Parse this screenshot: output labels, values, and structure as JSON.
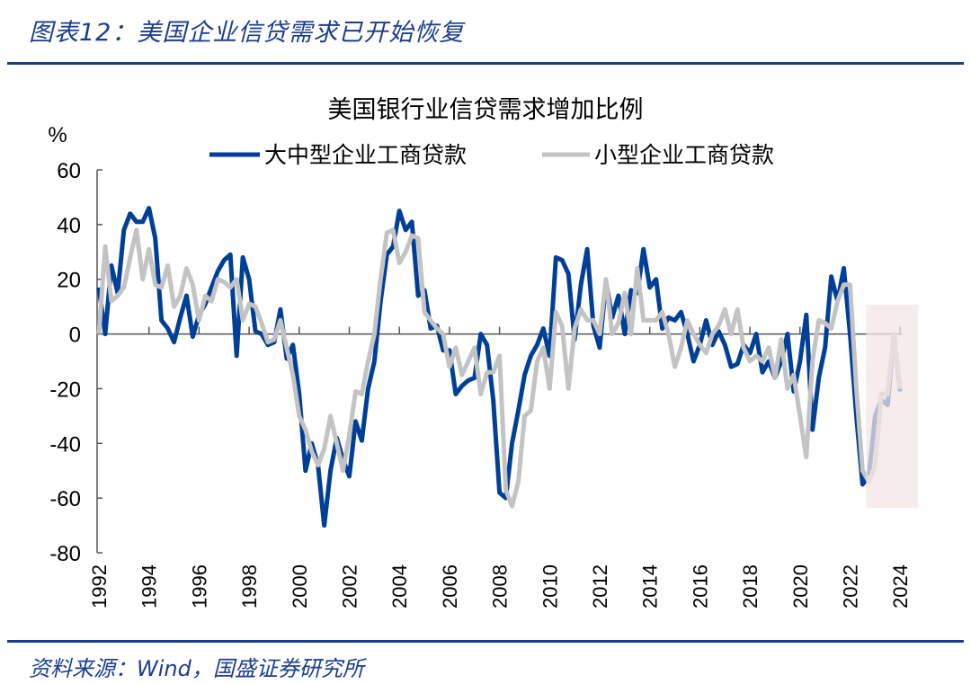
{
  "header": {
    "title": "图表12：美国企业信贷需求已开始恢复"
  },
  "footer": {
    "source": "资料来源：Wind，国盛证券研究所"
  },
  "colors": {
    "accent": "#1a3d8f",
    "series_large": "#003f98",
    "series_small": "#c3c3c3",
    "highlight": "#f3e6e6"
  },
  "chart_data": {
    "type": "line",
    "title": "美国银行业信贷需求增加比例",
    "ylabel": "%",
    "xlabel": "",
    "ylim": [
      -80,
      60
    ],
    "yticks": [
      "60",
      "40",
      "20",
      "0",
      "-20",
      "-40",
      "-60",
      "-80"
    ],
    "xticks": [
      "1992",
      "1994",
      "1996",
      "1998",
      "2000",
      "2002",
      "2004",
      "2006",
      "2008",
      "2010",
      "2012",
      "2014",
      "2016",
      "2018",
      "2020",
      "2022",
      "2024"
    ],
    "grid": false,
    "legend": "top",
    "highlight_range": [
      "2022Q3",
      "2024Q1"
    ],
    "x": [
      "1992Q1",
      "1992Q2",
      "1992Q3",
      "1992Q4",
      "1993Q1",
      "1993Q2",
      "1993Q3",
      "1993Q4",
      "1994Q1",
      "1994Q2",
      "1994Q3",
      "1994Q4",
      "1995Q1",
      "1995Q2",
      "1995Q3",
      "1995Q4",
      "1996Q1",
      "1996Q2",
      "1996Q3",
      "1996Q4",
      "1997Q1",
      "1997Q2",
      "1997Q3",
      "1997Q4",
      "1998Q1",
      "1998Q2",
      "1998Q3",
      "1998Q4",
      "1999Q1",
      "1999Q2",
      "1999Q3",
      "1999Q4",
      "2000Q1",
      "2000Q2",
      "2000Q3",
      "2000Q4",
      "2001Q1",
      "2001Q2",
      "2001Q3",
      "2001Q4",
      "2002Q1",
      "2002Q2",
      "2002Q3",
      "2002Q4",
      "2003Q1",
      "2003Q2",
      "2003Q3",
      "2003Q4",
      "2004Q1",
      "2004Q2",
      "2004Q3",
      "2004Q4",
      "2005Q1",
      "2005Q2",
      "2005Q3",
      "2005Q4",
      "2006Q1",
      "2006Q2",
      "2006Q3",
      "2006Q4",
      "2007Q1",
      "2007Q2",
      "2007Q3",
      "2007Q4",
      "2008Q1",
      "2008Q2",
      "2008Q3",
      "2008Q4",
      "2009Q1",
      "2009Q2",
      "2009Q3",
      "2009Q4",
      "2010Q1",
      "2010Q2",
      "2010Q3",
      "2010Q4",
      "2011Q1",
      "2011Q2",
      "2011Q3",
      "2011Q4",
      "2012Q1",
      "2012Q2",
      "2012Q3",
      "2012Q4",
      "2013Q1",
      "2013Q2",
      "2013Q3",
      "2013Q4",
      "2014Q1",
      "2014Q2",
      "2014Q3",
      "2014Q4",
      "2015Q1",
      "2015Q2",
      "2015Q3",
      "2015Q4",
      "2016Q1",
      "2016Q2",
      "2016Q3",
      "2016Q4",
      "2017Q1",
      "2017Q2",
      "2017Q3",
      "2017Q4",
      "2018Q1",
      "2018Q2",
      "2018Q3",
      "2018Q4",
      "2019Q1",
      "2019Q2",
      "2019Q3",
      "2019Q4",
      "2020Q1",
      "2020Q2",
      "2020Q3",
      "2020Q4",
      "2021Q1",
      "2021Q2",
      "2021Q3",
      "2021Q4",
      "2022Q1",
      "2022Q2",
      "2022Q3",
      "2022Q4",
      "2023Q1",
      "2023Q2",
      "2023Q3",
      "2023Q4",
      "2024Q1"
    ],
    "series": [
      {
        "name": "大中型企业工商贷款",
        "values": [
          17,
          0,
          25,
          15,
          38,
          44,
          41,
          41,
          46,
          35,
          5,
          2,
          -3,
          6,
          14,
          -1,
          7,
          11,
          17,
          23,
          27,
          29,
          -8,
          28,
          20,
          1,
          0,
          -4,
          -3,
          9,
          -9,
          -4,
          -22,
          -50,
          -40,
          -48,
          -70,
          -50,
          -38,
          -46,
          -52,
          -32,
          -39,
          -20,
          -10,
          12,
          29,
          32,
          45,
          38,
          41,
          14,
          16,
          2,
          3,
          -6,
          -6,
          -22,
          -19,
          -17,
          -16,
          0,
          -4,
          -24,
          -58,
          -60,
          -40,
          -28,
          -15,
          -8,
          -4,
          2,
          -8,
          28,
          27,
          22,
          -2,
          18,
          31,
          3,
          -5,
          19,
          6,
          14,
          0,
          16,
          15,
          31,
          17,
          20,
          2,
          6,
          5,
          8,
          0,
          -10,
          -4,
          5,
          -4,
          1,
          -4,
          -12,
          -11,
          -4,
          -7,
          0,
          -14,
          -10,
          -16,
          -10,
          0,
          -21,
          -10,
          7,
          -35,
          -16,
          -5,
          21,
          12,
          24,
          0,
          -30,
          -55,
          -52,
          -30,
          -24,
          -26,
          0,
          -21
        ]
      },
      {
        "name": "小型企业工商贷款",
        "values": [
          0,
          32,
          12,
          14,
          17,
          28,
          38,
          20,
          31,
          18,
          17,
          25,
          10,
          14,
          24,
          18,
          5,
          14,
          12,
          20,
          19,
          17,
          20,
          5,
          11,
          10,
          4,
          -3,
          -2,
          5,
          -5,
          -15,
          -30,
          -35,
          -43,
          -48,
          -42,
          -30,
          -40,
          -50,
          -37,
          -21,
          -22,
          -10,
          0,
          20,
          37,
          38,
          26,
          30,
          36,
          35,
          8,
          5,
          2,
          0,
          -12,
          -5,
          -15,
          -10,
          -5,
          -22,
          -14,
          -14,
          -8,
          -57,
          -63,
          -54,
          -30,
          -28,
          -10,
          -5,
          -20,
          8,
          3,
          -20,
          2,
          9,
          5,
          5,
          0,
          20,
          0,
          4,
          15,
          0,
          24,
          5,
          5,
          5,
          8,
          0,
          -12,
          -5,
          5,
          0,
          -4,
          -7,
          0,
          3,
          9,
          0,
          9,
          -5,
          -10,
          -8,
          -10,
          -5,
          -16,
          -2,
          -20,
          -15,
          -30,
          -45,
          -10,
          5,
          4,
          2,
          12,
          18,
          18,
          -20,
          -50,
          -54,
          -48,
          -22,
          -22,
          0,
          -20
        ]
      }
    ]
  }
}
